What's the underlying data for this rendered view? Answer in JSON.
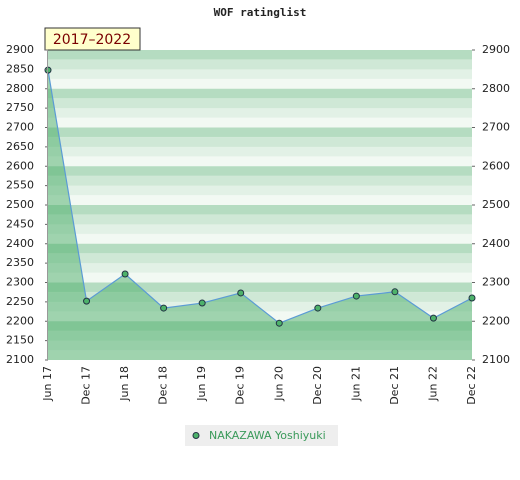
{
  "chart_data": {
    "type": "line",
    "title": "WOF ratinglist",
    "badge": "2017–2022",
    "categories": [
      "Jun 17",
      "Dec 17",
      "Jun 18",
      "Dec 18",
      "Jun 19",
      "Dec 19",
      "Jun 20",
      "Dec 20",
      "Jun 21",
      "Dec 21",
      "Jun 22",
      "Dec 22"
    ],
    "series": [
      {
        "name": "NAKAZAWA Yoshiyuki",
        "color": "#5b9bd5",
        "marker_color": "#4db26a",
        "values": [
          2848,
          2252,
          2322,
          2234,
          2247,
          2273,
          2195,
          2234,
          2265,
          2276,
          2208,
          2260
        ]
      }
    ],
    "ylim": [
      2100,
      2900
    ],
    "yticks": [
      2100,
      2150,
      2200,
      2250,
      2300,
      2350,
      2400,
      2450,
      2500,
      2550,
      2600,
      2650,
      2700,
      2750,
      2800,
      2850,
      2900
    ],
    "y2lim": [
      2100,
      2900
    ],
    "y2ticks": [
      2100,
      2200,
      2300,
      2400,
      2500,
      2600,
      2700,
      2800,
      2900
    ],
    "area_fill": true
  }
}
